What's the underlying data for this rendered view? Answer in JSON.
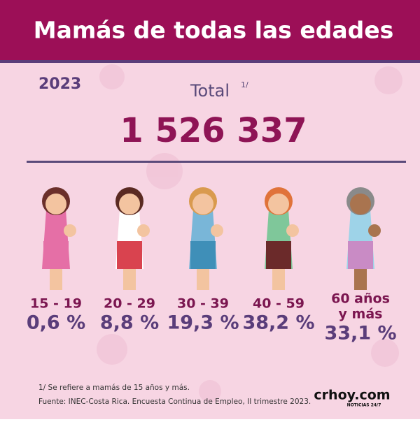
{
  "header": {
    "title": "Mamás de todas las edades"
  },
  "year": "2023",
  "total": {
    "label": "Total",
    "note_ref": "1/",
    "value": "1 526 337"
  },
  "groups": [
    {
      "age": [
        "15 - 19"
      ],
      "share": "0,6 %"
    },
    {
      "age": [
        "20 - 29"
      ],
      "share": "8,8 %"
    },
    {
      "age": [
        "30 - 39"
      ],
      "share": "19,3 %"
    },
    {
      "age": [
        "40 - 59"
      ],
      "share": "38,2 %"
    },
    {
      "age": [
        "60 años",
        "y más"
      ],
      "share": "33,1 %"
    }
  ],
  "footnote": "1/ Se refiere a mamás de 15 años y más.",
  "source": "Fuente: INEC-Costa Rica. Encuesta Continua de Empleo, II trimestre 2023.",
  "logo": {
    "name": "crhoy.com",
    "tagline": "NOTICIAS 24/7"
  }
}
